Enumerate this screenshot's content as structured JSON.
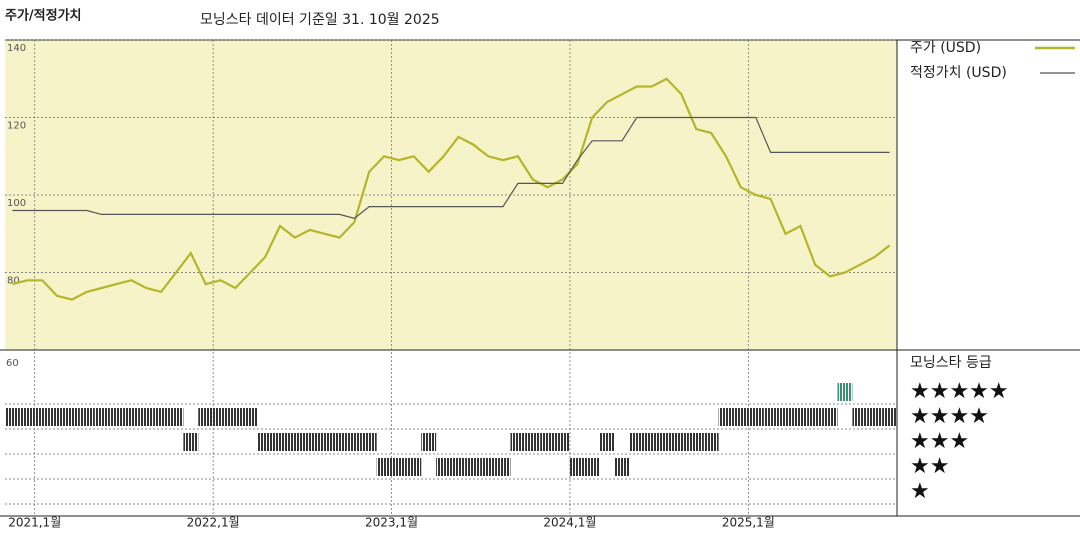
{
  "chart_data": {
    "type": "line",
    "title": "주가/적정가치",
    "subtitle": "모닝스타 데이터 기준일 31. 10월 2025",
    "x": [
      "2020-11",
      "2020-12",
      "2021-01",
      "2021-02",
      "2021-03",
      "2021-04",
      "2021-05",
      "2021-06",
      "2021-07",
      "2021-08",
      "2021-09",
      "2021-10",
      "2021-11",
      "2021-12",
      "2022-01",
      "2022-02",
      "2022-03",
      "2022-04",
      "2022-05",
      "2022-06",
      "2022-07",
      "2022-08",
      "2022-09",
      "2022-10",
      "2022-11",
      "2022-12",
      "2023-01",
      "2023-02",
      "2023-03",
      "2023-04",
      "2023-05",
      "2023-06",
      "2023-07",
      "2023-08",
      "2023-09",
      "2023-10",
      "2023-11",
      "2023-12",
      "2024-01",
      "2024-02",
      "2024-03",
      "2024-04",
      "2024-05",
      "2024-06",
      "2024-07",
      "2024-08",
      "2024-09",
      "2024-10",
      "2024-11",
      "2024-12",
      "2025-01",
      "2025-02",
      "2025-03",
      "2025-04",
      "2025-05",
      "2025-06",
      "2025-07",
      "2025-08",
      "2025-09",
      "2025-10"
    ],
    "series": [
      {
        "name": "주가 (USD)",
        "color": "#b5b52a",
        "values": [
          77,
          78,
          78,
          74,
          73,
          75,
          76,
          77,
          78,
          76,
          75,
          80,
          85,
          77,
          78,
          76,
          80,
          84,
          92,
          89,
          91,
          90,
          89,
          93,
          106,
          110,
          109,
          110,
          106,
          110,
          115,
          113,
          110,
          109,
          110,
          104,
          102,
          104,
          108,
          120,
          124,
          126,
          128,
          128,
          130,
          126,
          117,
          116,
          110,
          102,
          100,
          99,
          90,
          92,
          82,
          79,
          80,
          82,
          84,
          87
        ]
      },
      {
        "name": "적정가치 (USD)",
        "color": "#555555",
        "values": [
          96,
          96,
          96,
          96,
          96,
          96,
          95,
          95,
          95,
          95,
          95,
          95,
          95,
          95,
          95,
          95,
          95,
          95,
          95,
          95,
          95,
          95,
          95,
          94,
          97,
          97,
          97,
          97,
          97,
          97,
          97,
          97,
          97,
          97,
          103,
          103,
          103,
          103,
          109,
          114,
          114,
          114,
          120,
          120,
          120,
          120,
          120,
          120,
          120,
          120,
          120,
          111,
          111,
          111,
          111,
          111,
          111,
          111,
          111,
          111
        ]
      }
    ],
    "ylim": [
      60,
      140
    ],
    "yticks": [
      80,
      100,
      120,
      140
    ],
    "xticks": [
      {
        "value": "2021-01",
        "label": "2021,1월"
      },
      {
        "value": "2022-01",
        "label": "2022,1월"
      },
      {
        "value": "2023-01",
        "label": "2023,1월"
      },
      {
        "value": "2024-01",
        "label": "2024,1월"
      },
      {
        "value": "2025-01",
        "label": "2025,1월"
      }
    ],
    "grid": true,
    "rating_title": "모닝스타 등급",
    "rating_panel_tick": "60",
    "rating_levels": [
      {
        "value": 5,
        "label": "★★★★★"
      },
      {
        "value": 4,
        "label": "★★★★"
      },
      {
        "value": 3,
        "label": "★★★"
      },
      {
        "value": 2,
        "label": "★★"
      },
      {
        "value": 1,
        "label": "★"
      }
    ],
    "ratings": [
      4,
      4,
      4,
      4,
      4,
      4,
      4,
      4,
      4,
      4,
      4,
      4,
      3,
      4,
      4,
      4,
      4,
      3,
      3,
      3,
      3,
      3,
      3,
      3,
      3,
      2,
      2,
      2,
      3,
      2,
      2,
      2,
      2,
      2,
      3,
      3,
      3,
      3,
      2,
      2,
      3,
      2,
      3,
      3,
      3,
      3,
      3,
      3,
      4,
      4,
      4,
      4,
      4,
      4,
      4,
      4,
      5,
      4,
      4,
      4
    ],
    "rating_colors": {
      "top": "#3a8f6e",
      "other": "#333333"
    }
  }
}
